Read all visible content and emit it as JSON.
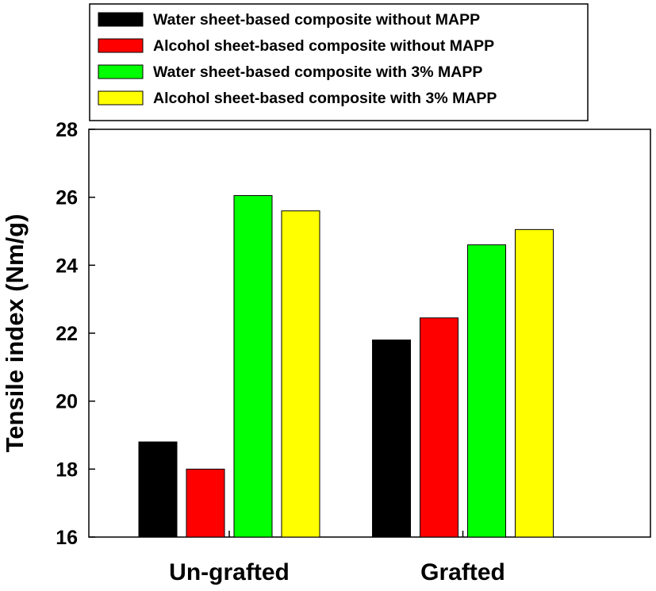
{
  "chart_data": {
    "type": "bar",
    "title": "",
    "xlabel": "",
    "ylabel": "Tensile index (Nm/g)",
    "ylim": [
      16,
      28
    ],
    "yticks": [
      16,
      18,
      20,
      22,
      24,
      26,
      28
    ],
    "categories": [
      "Un-grafted",
      "Grafted"
    ],
    "grid": false,
    "legend_position": "top",
    "series": [
      {
        "name": "Water sheet-based composite without MAPP",
        "color": "#000000",
        "values": [
          18.8,
          21.8
        ]
      },
      {
        "name": "Alcohol sheet-based composite without MAPP",
        "color": "#ff0000",
        "values": [
          18.0,
          22.45
        ]
      },
      {
        "name": "Water sheet-based composite with 3% MAPP",
        "color": "#00ff00",
        "values": [
          26.05,
          24.6
        ]
      },
      {
        "name": "Alcohol sheet-based composite with 3% MAPP",
        "color": "#ffff00",
        "values": [
          25.6,
          25.05
        ]
      }
    ]
  }
}
